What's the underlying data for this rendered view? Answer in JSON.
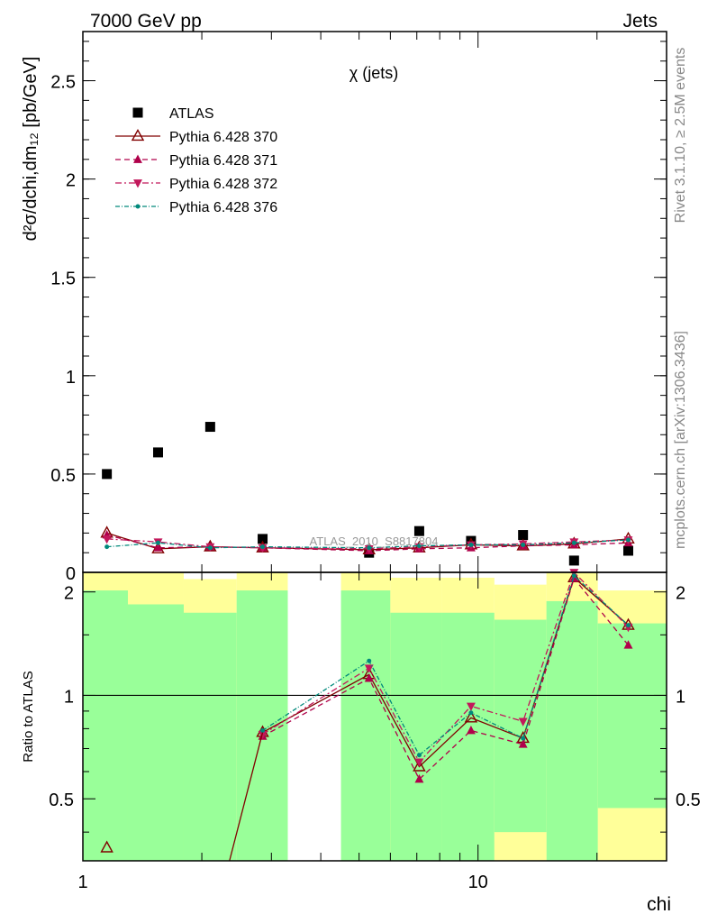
{
  "header": {
    "left": "7000 GeV pp",
    "right": "Jets"
  },
  "side_labels": {
    "rivet": "Rivet 3.1.10, ≥ 2.5M events",
    "mcplots": "mcplots.cern.ch [arXiv:1306.3436]"
  },
  "chart_data": {
    "type": "scatter",
    "title": "χ (jets)",
    "analysis_label": "ATLAS_2010_S8817804",
    "xlabel": "chi",
    "ylabel": "d²σ/dchi,dm₁₂ [pb/GeV]",
    "ratio_ylabel": "Ratio to ATLAS",
    "xscale": "log",
    "xlim": [
      1,
      30
    ],
    "ylim": [
      0,
      2.75
    ],
    "ratio_ylim": [
      0.33,
      2.28
    ],
    "x_tick_labels": [
      "1",
      "10"
    ],
    "y_tick_labels": [
      "0",
      "0.5",
      "1",
      "1.5",
      "2",
      "2.5"
    ],
    "ratio_tick_labels": [
      "0.5",
      "1",
      "2"
    ],
    "legend_position": "top-left",
    "x": [
      1.15,
      1.55,
      2.1,
      2.85,
      5.3,
      7.1,
      9.6,
      13.0,
      17.5,
      24.0
    ],
    "bin_edges": [
      1.0,
      1.3,
      1.8,
      2.45,
      3.3,
      4.5,
      6.0,
      8.1,
      11.0,
      14.9,
      20.1,
      30.0
    ],
    "band_bins": [
      {
        "lo": 1.0,
        "hi": 1.3,
        "green": [
          0.33,
          2.02
        ],
        "yellow": [
          0.33,
          2.28
        ]
      },
      {
        "lo": 1.3,
        "hi": 1.8,
        "green": [
          0.33,
          1.84
        ],
        "yellow": [
          0.33,
          2.28
        ]
      },
      {
        "lo": 1.8,
        "hi": 2.45,
        "green": [
          0.33,
          1.74
        ],
        "yellow": [
          0.33,
          2.18
        ]
      },
      {
        "lo": 2.45,
        "hi": 3.3,
        "green": [
          0.33,
          2.02
        ],
        "yellow": [
          0.33,
          2.28
        ]
      },
      {
        "lo": 4.5,
        "hi": 6.0,
        "green": [
          0.33,
          2.02
        ],
        "yellow": [
          0.33,
          2.28
        ]
      },
      {
        "lo": 6.0,
        "hi": 8.1,
        "green": [
          0.33,
          1.74
        ],
        "yellow": [
          0.33,
          2.2
        ]
      },
      {
        "lo": 8.1,
        "hi": 11.0,
        "green": [
          0.33,
          1.74
        ],
        "yellow": [
          0.33,
          2.2
        ]
      },
      {
        "lo": 11.0,
        "hi": 14.9,
        "green": [
          0.33,
          1.66
        ],
        "yellow": [
          0.33,
          2.1
        ]
      },
      {
        "lo": 14.9,
        "hi": 20.1,
        "green": [
          0.33,
          1.88
        ],
        "yellow": [
          0.33,
          2.28
        ]
      },
      {
        "lo": 20.1,
        "hi": 30.0,
        "green": [
          0.33,
          1.62
        ],
        "yellow": [
          0.33,
          2.02
        ]
      }
    ],
    "band_extra": [
      {
        "lo": 11.0,
        "hi": 14.9,
        "yellow": [
          0.33,
          0.4
        ]
      },
      {
        "lo": 20.1,
        "hi": 30.0,
        "yellow": [
          0.33,
          0.47
        ]
      }
    ],
    "series": [
      {
        "name": "ATLAS",
        "color": "#000000",
        "style": "data",
        "marker": "square",
        "values": [
          0.5,
          0.61,
          0.74,
          0.17,
          0.1,
          0.21,
          0.16,
          0.19,
          0.06,
          0.11
        ],
        "ratio": [
          null,
          null,
          null,
          null,
          null,
          null,
          null,
          null,
          null,
          null
        ]
      },
      {
        "name": "Pythia 6.428 370",
        "color": "#800000",
        "dash": "",
        "marker": "open-triangle-up",
        "values": [
          0.2,
          0.12,
          0.13,
          0.125,
          0.115,
          0.125,
          0.14,
          0.135,
          0.145,
          0.17
        ],
        "ratio": [
          0.36,
          null,
          null,
          0.78,
          1.15,
          0.62,
          0.86,
          0.75,
          2.2,
          1.6
        ]
      },
      {
        "name": "Pythia 6.428 371",
        "color": "#b0004a",
        "dash": "6,4",
        "marker": "triangle-up",
        "values": [
          0.19,
          0.125,
          0.13,
          0.125,
          0.11,
          0.12,
          0.125,
          0.135,
          0.14,
          0.15
        ],
        "ratio": [
          null,
          null,
          null,
          0.76,
          1.12,
          0.57,
          0.79,
          0.72,
          2.19,
          1.4
        ]
      },
      {
        "name": "Pythia 6.428 372",
        "color": "#c2185b",
        "dash": "7,3,2,3",
        "marker": "triangle-down",
        "values": [
          0.17,
          0.155,
          0.13,
          0.125,
          0.12,
          0.13,
          0.14,
          0.145,
          0.155,
          0.165
        ],
        "ratio": [
          null,
          null,
          null,
          0.77,
          1.2,
          0.64,
          0.93,
          0.84,
          2.28,
          1.58
        ]
      },
      {
        "name": "Pythia 6.428 376",
        "color": "#00897b",
        "dash": "5,2,1,2",
        "marker": "dot",
        "values": [
          0.13,
          0.15,
          0.125,
          0.13,
          0.125,
          0.135,
          0.14,
          0.14,
          0.15,
          0.165
        ],
        "ratio": [
          null,
          null,
          null,
          0.79,
          1.26,
          0.67,
          0.89,
          0.75,
          2.23,
          1.6
        ]
      }
    ]
  }
}
